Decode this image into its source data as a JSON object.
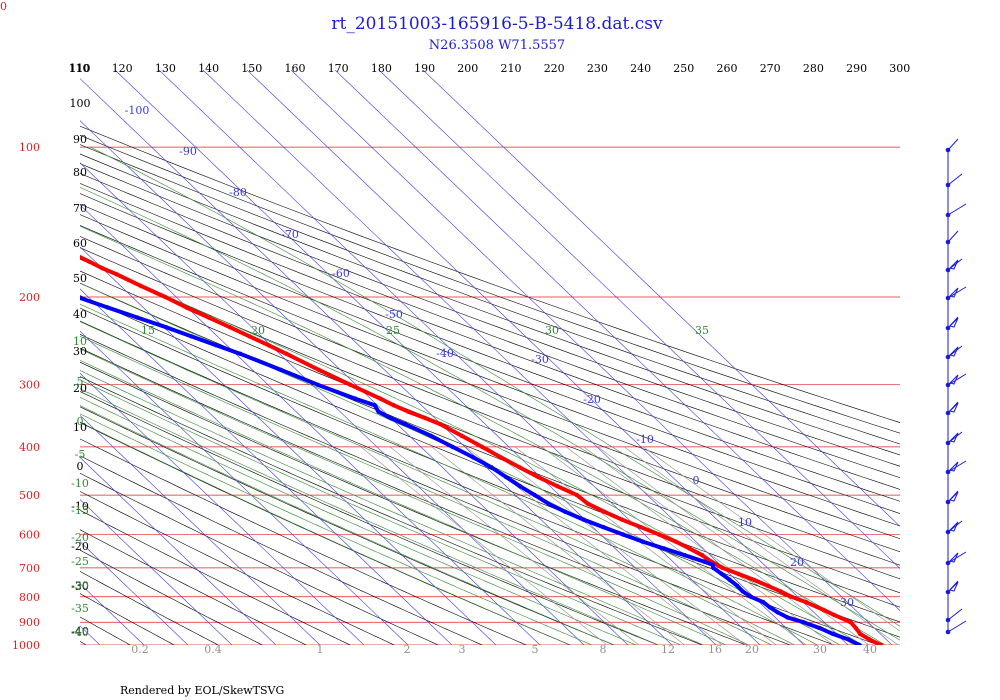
{
  "chart_data": {
    "type": "skew-t",
    "title": "rt_20151003-165916-5-B-5418.dat.csv",
    "subtitle": "N26.3508 W71.5557",
    "footer": "Rendered by EOL/SkewTSVG",
    "corner_label": "0",
    "colors": {
      "title": "#1a1adb",
      "temperature": "#ff0000",
      "dewpoint": "#0000ff",
      "isobar": "#e02020",
      "isotherm": "#3a3ae0",
      "theta": "#000000",
      "theta_e": "#2e8b2e",
      "mixing_ratio": "#909090",
      "wind": "#1a1adb"
    },
    "pressure_levels": [
      100,
      200,
      300,
      400,
      500,
      600,
      700,
      800,
      900,
      1000
    ],
    "isotherm_labels": [
      -100,
      -90,
      -80,
      -70,
      -60,
      -50,
      -40,
      -30,
      -20,
      -10,
      0,
      10,
      20,
      30
    ],
    "theta_labels": [
      110,
      120,
      130,
      140,
      150,
      160,
      170,
      180,
      190,
      200,
      210,
      220,
      230,
      240,
      250,
      260,
      270,
      280,
      290,
      300
    ],
    "left_labels": [
      "110",
      "100",
      "90",
      "80",
      "70",
      "60",
      "50",
      "40",
      "30",
      "20",
      "10",
      "0",
      "-10",
      "-20",
      "-30",
      "-40"
    ],
    "theta_e_labels_top": [
      "10",
      "15",
      "20",
      "25",
      "30",
      "35"
    ],
    "theta_e_labels_left": [
      "10",
      "5",
      "0",
      "-5",
      "-10",
      "-15",
      "-20",
      "-25",
      "-30",
      "-35",
      "-40"
    ],
    "mixing_ratio_labels": [
      "0.2",
      "0.4",
      "1",
      "2",
      "3",
      "5",
      "8",
      "12",
      "16",
      "20",
      "30",
      "40"
    ],
    "temperature_profile": [
      {
        "p": 1000,
        "t": 27.5
      },
      {
        "p": 975,
        "t": 26.2
      },
      {
        "p": 950,
        "t": 25.4
      },
      {
        "p": 925,
        "t": 25.8
      },
      {
        "p": 900,
        "t": 26.0
      },
      {
        "p": 870,
        "t": 24.0
      },
      {
        "p": 850,
        "t": 22.8
      },
      {
        "p": 820,
        "t": 20.6
      },
      {
        "p": 800,
        "t": 18.6
      },
      {
        "p": 780,
        "t": 17.4
      },
      {
        "p": 760,
        "t": 15.8
      },
      {
        "p": 740,
        "t": 14.1
      },
      {
        "p": 720,
        "t": 12.0
      },
      {
        "p": 700,
        "t": 9.8
      },
      {
        "p": 680,
        "t": 8.7
      },
      {
        "p": 660,
        "t": 8.2
      },
      {
        "p": 640,
        "t": 6.9
      },
      {
        "p": 620,
        "t": 5.4
      },
      {
        "p": 600,
        "t": 3.3
      },
      {
        "p": 580,
        "t": 0.9
      },
      {
        "p": 560,
        "t": -1.6
      },
      {
        "p": 540,
        "t": -3.7
      },
      {
        "p": 520,
        "t": -5.6
      },
      {
        "p": 500,
        "t": -6.0
      },
      {
        "p": 480,
        "t": -8.3
      },
      {
        "p": 460,
        "t": -10.5
      },
      {
        "p": 440,
        "t": -12.4
      },
      {
        "p": 420,
        "t": -14.3
      },
      {
        "p": 400,
        "t": -16.1
      },
      {
        "p": 380,
        "t": -18.1
      },
      {
        "p": 360,
        "t": -20.2
      },
      {
        "p": 350,
        "t": -22.2
      },
      {
        "p": 340,
        "t": -24.5
      },
      {
        "p": 330,
        "t": -26.3
      },
      {
        "p": 320,
        "t": -27.8
      },
      {
        "p": 300,
        "t": -31.3
      },
      {
        "p": 280,
        "t": -34.9
      },
      {
        "p": 260,
        "t": -38.5
      },
      {
        "p": 250,
        "t": -40.5
      },
      {
        "p": 240,
        "t": -42.7
      },
      {
        "p": 230,
        "t": -45.0
      },
      {
        "p": 220,
        "t": -47.5
      },
      {
        "p": 210,
        "t": -50.2
      },
      {
        "p": 200,
        "t": -52.5
      },
      {
        "p": 190,
        "t": -55.4
      },
      {
        "p": 180,
        "t": -58.2
      },
      {
        "p": 175,
        "t": -60.0
      },
      {
        "p": 170,
        "t": -61.3
      },
      {
        "p": 160,
        "t": -64.3
      },
      {
        "p": 150,
        "t": -67.0
      },
      {
        "p": 140,
        "t": -70.2
      },
      {
        "p": 130,
        "t": -73.5
      },
      {
        "p": 120,
        "t": -76.3
      },
      {
        "p": 110,
        "t": -79.4
      },
      {
        "p": 100,
        "t": -82.5
      },
      {
        "p": 95,
        "t": -83.4
      },
      {
        "p": 90,
        "t": -82.1
      },
      {
        "p": 85,
        "t": -80.3
      },
      {
        "p": 80,
        "t": -76.5
      },
      {
        "p": 78,
        "t": -73.0
      },
      {
        "p": 75,
        "t": -68.4
      },
      {
        "p": 73,
        "t": -65.6
      },
      {
        "p": 70,
        "t": -62.5
      }
    ],
    "dewpoint_profile": [
      {
        "p": 1000,
        "t": 22.6
      },
      {
        "p": 975,
        "t": 21.4
      },
      {
        "p": 950,
        "t": 19.2
      },
      {
        "p": 925,
        "t": 17.6
      },
      {
        "p": 900,
        "t": 15.3
      },
      {
        "p": 880,
        "t": 12.8
      },
      {
        "p": 860,
        "t": 11.8
      },
      {
        "p": 840,
        "t": 11.2
      },
      {
        "p": 820,
        "t": 10.9
      },
      {
        "p": 800,
        "t": 9.4
      },
      {
        "p": 780,
        "t": 8.8
      },
      {
        "p": 760,
        "t": 8.9
      },
      {
        "p": 740,
        "t": 8.6
      },
      {
        "p": 720,
        "t": 8.2
      },
      {
        "p": 700,
        "t": 7.7
      },
      {
        "p": 690,
        "t": 8.3
      },
      {
        "p": 680,
        "t": 7.1
      },
      {
        "p": 660,
        "t": 4.2
      },
      {
        "p": 640,
        "t": 1.1
      },
      {
        "p": 620,
        "t": -2.1
      },
      {
        "p": 600,
        "t": -4.9
      },
      {
        "p": 580,
        "t": -7.6
      },
      {
        "p": 560,
        "t": -10.3
      },
      {
        "p": 540,
        "t": -12.6
      },
      {
        "p": 520,
        "t": -14.5
      },
      {
        "p": 500,
        "t": -15.6
      },
      {
        "p": 480,
        "t": -16.8
      },
      {
        "p": 460,
        "t": -17.8
      },
      {
        "p": 440,
        "t": -18.8
      },
      {
        "p": 420,
        "t": -20.6
      },
      {
        "p": 400,
        "t": -22.8
      },
      {
        "p": 380,
        "t": -25.1
      },
      {
        "p": 360,
        "t": -28.2
      },
      {
        "p": 350,
        "t": -30.1
      },
      {
        "p": 340,
        "t": -31.3
      },
      {
        "p": 330,
        "t": -30.6
      },
      {
        "p": 320,
        "t": -33.5
      },
      {
        "p": 300,
        "t": -38.7
      },
      {
        "p": 280,
        "t": -43.5
      },
      {
        "p": 260,
        "t": -49.0
      },
      {
        "p": 250,
        "t": -52.4
      },
      {
        "p": 240,
        "t": -55.9
      },
      {
        "p": 230,
        "t": -59.5
      },
      {
        "p": 220,
        "t": -63.7
      },
      {
        "p": 210,
        "t": -68.1
      },
      {
        "p": 200,
        "t": -72.5
      },
      {
        "p": 190,
        "t": -77.6
      },
      {
        "p": 180,
        "t": -82.8
      },
      {
        "p": 175,
        "t": -86.0
      }
    ]
  }
}
